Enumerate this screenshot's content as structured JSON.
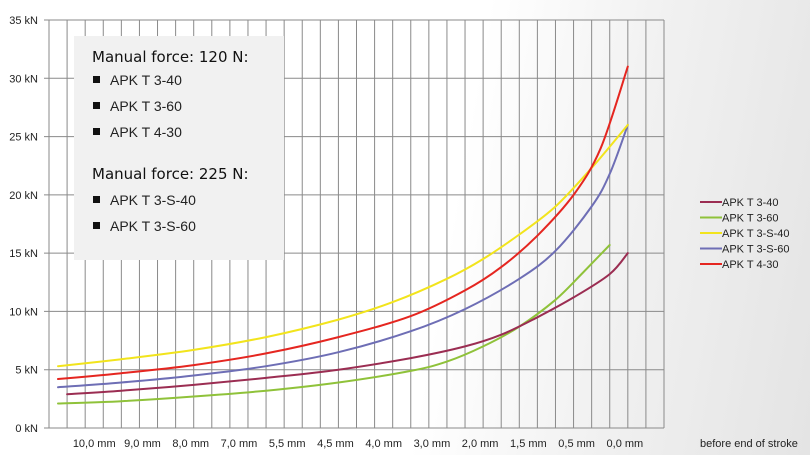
{
  "chart_data": {
    "type": "line",
    "title": "",
    "xlabel": "",
    "ylabel": "",
    "y_ticks": [
      "0 kN",
      "5 kN",
      "10 kN",
      "15 kN",
      "20 kN",
      "25 kN",
      "30 kN",
      "35 kN"
    ],
    "ylim": [
      0,
      35
    ],
    "x_ticks": [
      "10,0 mm",
      "9,0 mm",
      "8,0 mm",
      "7,0 mm",
      "5,5 mm",
      "4,5 mm",
      "4,0 mm",
      "3,0 mm",
      "2,0 mm",
      "1,5 mm",
      "0,5 mm",
      "0,0 mm"
    ],
    "x_suffix": "before end of stroke",
    "xlim": [
      0,
      34
    ],
    "grid": true,
    "legend_position": "right",
    "series": [
      {
        "name": "APK T 3-40",
        "color": "#9b2d52",
        "points": [
          [
            1,
            2.9
          ],
          [
            4,
            3.2
          ],
          [
            8,
            3.7
          ],
          [
            12,
            4.3
          ],
          [
            16,
            5.0
          ],
          [
            20,
            6.0
          ],
          [
            23,
            7.0
          ],
          [
            25,
            8.0
          ],
          [
            27,
            9.5
          ],
          [
            29,
            11.2
          ],
          [
            31,
            13.2
          ],
          [
            32,
            15.0
          ]
        ]
      },
      {
        "name": "APK T 3-60",
        "color": "#8fc23a",
        "points": [
          [
            0.5,
            2.1
          ],
          [
            4,
            2.3
          ],
          [
            8,
            2.7
          ],
          [
            12,
            3.2
          ],
          [
            16,
            3.9
          ],
          [
            20,
            4.9
          ],
          [
            22,
            5.7
          ],
          [
            24,
            7.0
          ],
          [
            26,
            8.7
          ],
          [
            28,
            11.0
          ],
          [
            29.5,
            13.3
          ],
          [
            31,
            15.7
          ]
        ]
      },
      {
        "name": "APK T 3-S-40",
        "color": "#f2e41c",
        "points": [
          [
            0.5,
            5.3
          ],
          [
            4,
            5.9
          ],
          [
            8,
            6.7
          ],
          [
            12,
            7.8
          ],
          [
            16,
            9.3
          ],
          [
            19,
            10.8
          ],
          [
            22,
            12.8
          ],
          [
            24,
            14.5
          ],
          [
            26,
            16.6
          ],
          [
            28,
            19.0
          ],
          [
            30,
            22.3
          ],
          [
            32,
            26.0
          ]
        ]
      },
      {
        "name": "APK T 3-S-60",
        "color": "#6e6eb5",
        "points": [
          [
            0.5,
            3.5
          ],
          [
            4,
            3.9
          ],
          [
            8,
            4.5
          ],
          [
            12,
            5.3
          ],
          [
            16,
            6.5
          ],
          [
            20,
            8.3
          ],
          [
            23,
            10.2
          ],
          [
            26,
            12.8
          ],
          [
            28,
            15.2
          ],
          [
            30,
            19.0
          ],
          [
            31,
            21.8
          ],
          [
            32,
            26.0
          ]
        ]
      },
      {
        "name": "APK T 4-30",
        "color": "#e52620",
        "points": [
          [
            0.5,
            4.2
          ],
          [
            4,
            4.7
          ],
          [
            8,
            5.4
          ],
          [
            12,
            6.4
          ],
          [
            16,
            7.8
          ],
          [
            20,
            9.6
          ],
          [
            23,
            11.8
          ],
          [
            25,
            13.8
          ],
          [
            27,
            16.5
          ],
          [
            29,
            20.0
          ],
          [
            30.5,
            24.0
          ],
          [
            32,
            31.0
          ]
        ]
      }
    ]
  },
  "info_box": {
    "group1_heading": "Manual force: 120 N:",
    "group1_items": [
      "APK T 3-40",
      "APK T 3-60",
      "APK T 4-30"
    ],
    "group2_heading": "Manual force: 225 N:",
    "group2_items": [
      "APK T 3-S-40",
      "APK T 3-S-60"
    ]
  }
}
